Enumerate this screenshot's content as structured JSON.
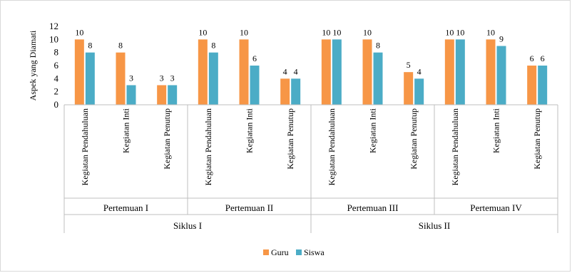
{
  "chart_data": {
    "type": "bar",
    "ylabel": "Aspek yang Diamati",
    "ylim": [
      0,
      12
    ],
    "yticks": [
      0,
      2,
      4,
      6,
      8,
      10,
      12
    ],
    "grid": false,
    "legend_position": "bottom-center",
    "categories": [
      "Kegiatan Pendahuluan",
      "Kegiatan Inti",
      "Kegiatan Penutup",
      "Kegiatan Pendahuluan",
      "Kegiatan Inti",
      "Kegiatan Penutup",
      "Kegiatan Pendahuluan",
      "Kegiatan Inti",
      "Kegiatan Penutup",
      "Kegiatan Pendahuluan",
      "Kegiatan Inti",
      "Kegiatan Penutup"
    ],
    "groups_level1": [
      {
        "label": "Pertemuan I",
        "span": 3
      },
      {
        "label": "Pertemuan II",
        "span": 3
      },
      {
        "label": "Pertemuan III",
        "span": 3
      },
      {
        "label": "Pertemuan IV",
        "span": 3
      }
    ],
    "groups_level2": [
      {
        "label": "Siklus I",
        "span": 6
      },
      {
        "label": "Siklus II",
        "span": 6
      }
    ],
    "series": [
      {
        "name": "Guru",
        "color": "#F79646",
        "values": [
          10,
          8,
          3,
          10,
          10,
          4,
          10,
          10,
          5,
          10,
          10,
          6
        ]
      },
      {
        "name": "Siswa",
        "color": "#4BACC6",
        "values": [
          8,
          3,
          3,
          8,
          6,
          4,
          10,
          8,
          4,
          10,
          9,
          6
        ]
      }
    ]
  }
}
